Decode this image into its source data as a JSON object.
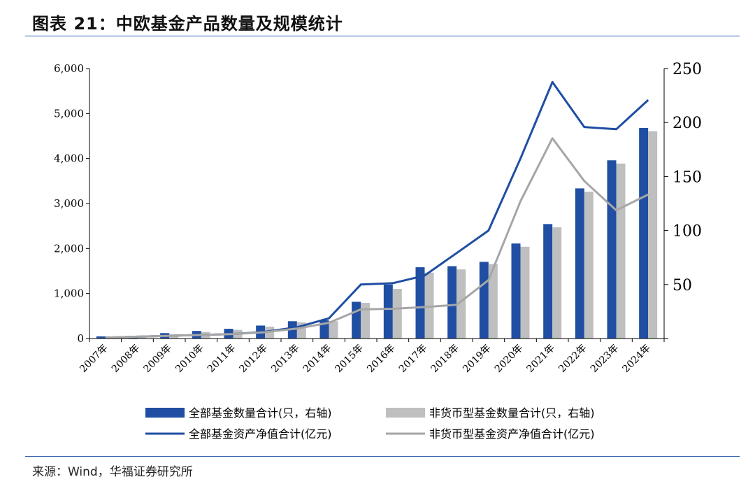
{
  "title": "图表 21：中欧基金产品数量及规模统计",
  "source": "来源：Wind，华福证券研究所",
  "chart_data": {
    "type": "bar",
    "categories": [
      "2007年",
      "2008年",
      "2009年",
      "2010年",
      "2011年",
      "2012年",
      "2013年",
      "2014年",
      "2015年",
      "2016年",
      "2017年",
      "2018年",
      "2019年",
      "2020年",
      "2021年",
      "2022年",
      "2023年",
      "2024年"
    ],
    "left_axis": {
      "min": 0,
      "max": 6000,
      "ticks": [
        "0",
        "1,000",
        "2,000",
        "3,000",
        "4,000",
        "5,000",
        "6,000"
      ]
    },
    "right_axis": {
      "min": 0,
      "max": 250,
      "ticks": [
        "50",
        "100",
        "150",
        "200",
        "250"
      ]
    },
    "bar_series": [
      {
        "name": "全部基金数量合计(只，右轴)",
        "color": "#1F4EA3",
        "values": [
          2,
          1,
          5,
          7,
          9,
          12,
          16,
          17,
          34,
          50,
          66,
          67,
          71,
          88,
          106,
          139,
          165,
          195
        ]
      },
      {
        "name": "非货币型基金数量合计(只，右轴)",
        "color": "#BFBFBF",
        "values": [
          2,
          1,
          4,
          6,
          8,
          11,
          15,
          16,
          33,
          46,
          61,
          64,
          69,
          85,
          103,
          136,
          162,
          192
        ]
      }
    ],
    "line_series": [
      {
        "name": "全部基金资产净值合计(亿元)",
        "color": "#1F4EA3",
        "values": [
          20,
          40,
          60,
          80,
          100,
          150,
          250,
          450,
          1200,
          1230,
          1400,
          1900,
          2400,
          4000,
          5700,
          4700,
          4650,
          5300
        ]
      },
      {
        "name": "非货币型基金资产净值合计(亿元)",
        "color": "#A6A6A6",
        "values": [
          20,
          40,
          60,
          80,
          100,
          140,
          220,
          350,
          650,
          660,
          700,
          750,
          1300,
          3050,
          4450,
          3500,
          2850,
          3200
        ]
      }
    ],
    "legend_position": "bottom"
  }
}
